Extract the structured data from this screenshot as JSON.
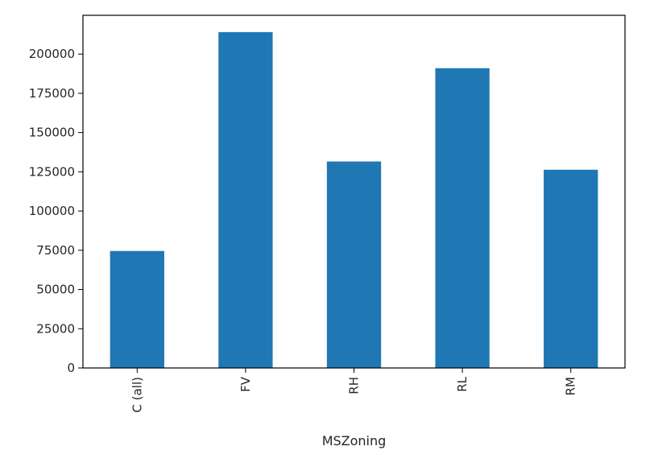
{
  "chart_data": {
    "type": "bar",
    "categories": [
      "C (all)",
      "FV",
      "RH",
      "RL",
      "RM"
    ],
    "values": [
      74528,
      214014,
      131558,
      191005,
      126317
    ],
    "title": "",
    "xlabel": "MSZoning",
    "ylabel": "",
    "ylim": [
      0,
      224715
    ],
    "yticks": [
      0,
      25000,
      50000,
      75000,
      100000,
      125000,
      150000,
      175000,
      200000
    ],
    "ytick_labels": [
      "0",
      "25000",
      "50000",
      "75000",
      "100000",
      "125000",
      "150000",
      "175000",
      "200000"
    ],
    "bar_color": "#1f77b4",
    "grid": false,
    "legend": "none"
  }
}
